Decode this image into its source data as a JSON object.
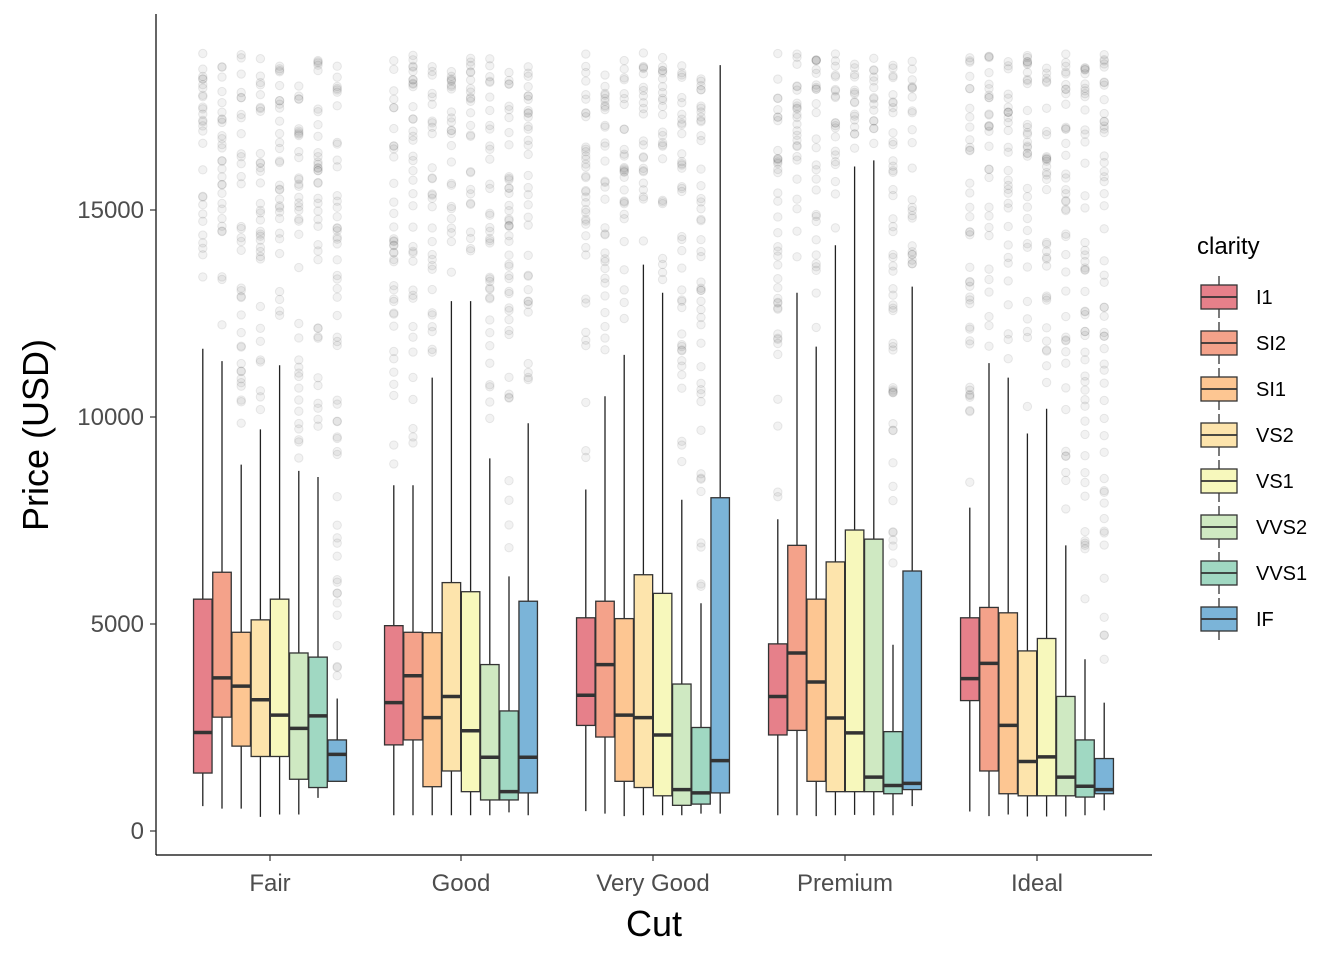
{
  "chart_data": {
    "type": "boxplot",
    "title": "",
    "xlabel": "Cut",
    "ylabel": "Price (USD)",
    "ylim": [
      -600,
      19600
    ],
    "yticks": [
      0,
      5000,
      10000,
      15000
    ],
    "ytick_labels": [
      "0",
      "5000",
      "10000",
      "15000"
    ],
    "categories": [
      "Fair",
      "Good",
      "Very Good",
      "Premium",
      "Ideal"
    ],
    "legend": {
      "title": "clarity",
      "position": "right",
      "entries": [
        "I1",
        "SI2",
        "SI1",
        "VS2",
        "VS1",
        "VVS2",
        "VVS1",
        "IF"
      ]
    },
    "colors": {
      "I1": "#e6808a",
      "SI2": "#f4a28a",
      "SI1": "#fdc692",
      "VS2": "#fde4ac",
      "VS1": "#f7f8bc",
      "VVS2": "#cfe9c2",
      "VVS1": "#a0d8c2",
      "IF": "#7bb4d8"
    },
    "outlier_color": "#000000",
    "series": [
      {
        "name": "I1",
        "boxes": [
          {
            "category": "Fair",
            "low": 600,
            "q1": 1400,
            "median": 2380,
            "q3": 5600,
            "high": 11650
          },
          {
            "category": "Good",
            "low": 380,
            "q1": 2080,
            "median": 3100,
            "q3": 4960,
            "high": 8350
          },
          {
            "category": "Very Good",
            "low": 480,
            "q1": 2550,
            "median": 3280,
            "q3": 5150,
            "high": 8250
          },
          {
            "category": "Premium",
            "low": 380,
            "q1": 2320,
            "median": 3250,
            "q3": 4520,
            "high": 7530
          },
          {
            "category": "Ideal",
            "low": 470,
            "q1": 3150,
            "median": 3680,
            "q3": 5150,
            "high": 7810
          }
        ]
      },
      {
        "name": "SI2",
        "boxes": [
          {
            "category": "Fair",
            "low": 540,
            "q1": 2750,
            "median": 3700,
            "q3": 6250,
            "high": 11350
          },
          {
            "category": "Good",
            "low": 380,
            "q1": 2200,
            "median": 3750,
            "q3": 4800,
            "high": 8350
          },
          {
            "category": "Very Good",
            "low": 420,
            "q1": 2270,
            "median": 4020,
            "q3": 5550,
            "high": 10500
          },
          {
            "category": "Premium",
            "low": 380,
            "q1": 2430,
            "median": 4300,
            "q3": 6900,
            "high": 13000
          },
          {
            "category": "Ideal",
            "low": 360,
            "q1": 1450,
            "median": 4050,
            "q3": 5400,
            "high": 11300
          }
        ]
      },
      {
        "name": "SI1",
        "boxes": [
          {
            "category": "Fair",
            "low": 540,
            "q1": 2050,
            "median": 3500,
            "q3": 4800,
            "high": 8850
          },
          {
            "category": "Good",
            "low": 380,
            "q1": 1070,
            "median": 2740,
            "q3": 4790,
            "high": 10950
          },
          {
            "category": "Very Good",
            "low": 360,
            "q1": 1200,
            "median": 2800,
            "q3": 5130,
            "high": 11500
          },
          {
            "category": "Premium",
            "low": 360,
            "q1": 1200,
            "median": 3600,
            "q3": 5600,
            "high": 11700
          },
          {
            "category": "Ideal",
            "low": 400,
            "q1": 900,
            "median": 2550,
            "q3": 5270,
            "high": 10950
          }
        ]
      },
      {
        "name": "VS2",
        "boxes": [
          {
            "category": "Fair",
            "low": 340,
            "q1": 1800,
            "median": 3170,
            "q3": 5100,
            "high": 9700
          },
          {
            "category": "Good",
            "low": 380,
            "q1": 1450,
            "median": 3250,
            "q3": 6000,
            "high": 12800
          },
          {
            "category": "Very Good",
            "low": 380,
            "q1": 1050,
            "median": 2740,
            "q3": 6190,
            "high": 13680
          },
          {
            "category": "Premium",
            "low": 380,
            "q1": 950,
            "median": 2730,
            "q3": 6500,
            "high": 14150
          },
          {
            "category": "Ideal",
            "low": 350,
            "q1": 850,
            "median": 1680,
            "q3": 4350,
            "high": 9600
          }
        ]
      },
      {
        "name": "VS1",
        "boxes": [
          {
            "category": "Fair",
            "low": 400,
            "q1": 1800,
            "median": 2800,
            "q3": 5600,
            "high": 11250
          },
          {
            "category": "Good",
            "low": 380,
            "q1": 950,
            "median": 2420,
            "q3": 5780,
            "high": 12800
          },
          {
            "category": "Very Good",
            "low": 380,
            "q1": 850,
            "median": 2320,
            "q3": 5740,
            "high": 13000
          },
          {
            "category": "Premium",
            "low": 390,
            "q1": 950,
            "median": 2370,
            "q3": 7270,
            "high": 16050
          },
          {
            "category": "Ideal",
            "low": 350,
            "q1": 850,
            "median": 1790,
            "q3": 4650,
            "high": 10200
          }
        ]
      },
      {
        "name": "VVS2",
        "boxes": [
          {
            "category": "Fair",
            "low": 400,
            "q1": 1250,
            "median": 2480,
            "q3": 4300,
            "high": 8700
          },
          {
            "category": "Good",
            "low": 380,
            "q1": 750,
            "median": 1780,
            "q3": 4020,
            "high": 9000
          },
          {
            "category": "Very Good",
            "low": 380,
            "q1": 620,
            "median": 1000,
            "q3": 3550,
            "high": 8000
          },
          {
            "category": "Premium",
            "low": 380,
            "q1": 950,
            "median": 1300,
            "q3": 7050,
            "high": 16200
          },
          {
            "category": "Ideal",
            "low": 350,
            "q1": 850,
            "median": 1300,
            "q3": 3250,
            "high": 6900
          }
        ]
      },
      {
        "name": "VVS1",
        "boxes": [
          {
            "category": "Fair",
            "low": 800,
            "q1": 1050,
            "median": 2780,
            "q3": 4200,
            "high": 8550
          },
          {
            "category": "Good",
            "low": 450,
            "q1": 750,
            "median": 950,
            "q3": 2900,
            "high": 6150
          },
          {
            "category": "Very Good",
            "low": 420,
            "q1": 650,
            "median": 920,
            "q3": 2500,
            "high": 5500
          },
          {
            "category": "Premium",
            "low": 380,
            "q1": 900,
            "median": 1100,
            "q3": 2400,
            "high": 4500
          },
          {
            "category": "Ideal",
            "low": 380,
            "q1": 820,
            "median": 1080,
            "q3": 2200,
            "high": 4150
          }
        ]
      },
      {
        "name": "IF",
        "boxes": [
          {
            "category": "Fair",
            "low": 1200,
            "q1": 1200,
            "median": 1850,
            "q3": 2200,
            "high": 3200
          },
          {
            "category": "Good",
            "low": 380,
            "q1": 920,
            "median": 1780,
            "q3": 5550,
            "high": 9850
          },
          {
            "category": "Very Good",
            "low": 420,
            "q1": 920,
            "median": 1700,
            "q3": 8050,
            "high": 18500
          },
          {
            "category": "Premium",
            "low": 600,
            "q1": 1000,
            "median": 1150,
            "q3": 6280,
            "high": 13150
          },
          {
            "category": "Ideal",
            "low": 500,
            "q1": 900,
            "median": 1000,
            "q3": 1750,
            "high": 3100
          }
        ]
      }
    ]
  }
}
